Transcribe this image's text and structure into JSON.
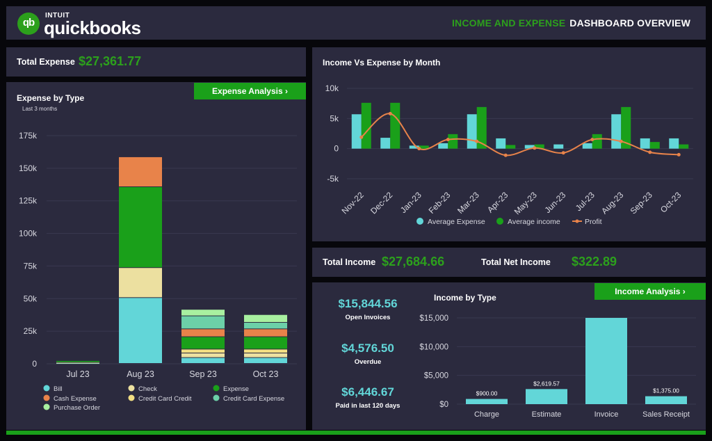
{
  "header": {
    "logo_intuit": "INTUIT",
    "logo_word": "quickbooks",
    "logo_badge": "qb",
    "title_part1": "INCOME AND EXPENSE",
    "title_part2": "DASHBOARD OVERVIEW"
  },
  "total_expense": {
    "label": "Total Expense",
    "value": "$27,361.77"
  },
  "total_income": {
    "label": "Total Income",
    "value": "$27,684.66"
  },
  "total_net_income": {
    "label": "Total Net Income",
    "value": "$322.89"
  },
  "expense_panel": {
    "title": "Expense by Type",
    "subtitle": "Last 3 months",
    "button_label": "Expense Analysis ›"
  },
  "income_panel": {
    "button_label": "Income Analysis ›",
    "stats": [
      {
        "value": "$15,844.56",
        "label": "Open Invoices"
      },
      {
        "value": "$4,576.50",
        "label": "Overdue"
      },
      {
        "value": "$6,446.67",
        "label": "Paid in last 120 days"
      }
    ]
  },
  "colors": {
    "panel": "#2b2a3e",
    "green": "#2ca01c",
    "cyan": "#62d6d8",
    "orange": "#e8834a"
  },
  "chart_data": [
    {
      "id": "expense_by_type",
      "type": "bar",
      "stacked": true,
      "title": "Expense by Type",
      "subtitle": "Last 3 months",
      "categories": [
        "Jul 23",
        "Aug 23",
        "Sep 23",
        "Oct 23"
      ],
      "ylim": [
        0,
        175000
      ],
      "yticks": [
        0,
        25000,
        50000,
        75000,
        100000,
        125000,
        150000,
        175000
      ],
      "ytick_labels": [
        "0",
        "25k",
        "50k",
        "75k",
        "100k",
        "125k",
        "150k",
        "175k"
      ],
      "series": [
        {
          "name": "Bill",
          "color": "#62d6d8",
          "values": [
            500,
            50500,
            4500,
            4500
          ]
        },
        {
          "name": "Check",
          "color": "#ece0a0",
          "values": [
            300,
            23000,
            3500,
            3500
          ]
        },
        {
          "name": "Credit Card Credit",
          "color": "#f2de82",
          "values": [
            0,
            0,
            3000,
            3000
          ]
        },
        {
          "name": "Expense",
          "color": "#1aa01a",
          "values": [
            1400,
            62000,
            9500,
            9500
          ]
        },
        {
          "name": "Cash Expense",
          "color": "#e8834a",
          "values": [
            0,
            23000,
            6000,
            6000
          ]
        },
        {
          "name": "Credit Card Expense",
          "color": "#6cd0a8",
          "values": [
            0,
            0,
            10000,
            5000
          ]
        },
        {
          "name": "Purchase Order",
          "color": "#a8f0a0",
          "values": [
            0,
            0,
            5000,
            6000
          ]
        }
      ],
      "legend": [
        {
          "name": "Bill",
          "color": "#62d6d8"
        },
        {
          "name": "Check",
          "color": "#ece0a0"
        },
        {
          "name": "Expense",
          "color": "#1aa01a"
        },
        {
          "name": "Cash Expense",
          "color": "#e8834a"
        },
        {
          "name": "Credit Card Credit",
          "color": "#f2de82"
        },
        {
          "name": "Credit Card Expense",
          "color": "#6cd0a8"
        },
        {
          "name": "Purchase Order",
          "color": "#a8f0a0"
        }
      ]
    },
    {
      "id": "income_vs_expense",
      "type": "bar",
      "title": "Income Vs Expense by Month",
      "categories": [
        "Nov-22",
        "Dec-22",
        "Jan-23",
        "Feb-23",
        "Mar-23",
        "Apr-23",
        "May-23",
        "Jun-23",
        "Jul-23",
        "Aug-23",
        "Sep-23",
        "Oct-23"
      ],
      "ylim": [
        -5000,
        10000
      ],
      "yticks": [
        -5000,
        0,
        5000,
        10000
      ],
      "ytick_labels": [
        "-5k",
        "0",
        "5k",
        "10k"
      ],
      "series": [
        {
          "name": "Average Expense",
          "type": "bar",
          "color": "#62d6d8",
          "values": [
            5700,
            1800,
            500,
            900,
            5700,
            1700,
            600,
            700,
            900,
            5700,
            1700,
            1700
          ]
        },
        {
          "name": "Average income",
          "type": "bar",
          "color": "#1aa01a",
          "values": [
            7600,
            7600,
            500,
            2400,
            6900,
            600,
            700,
            0,
            2400,
            6900,
            1100,
            700
          ]
        },
        {
          "name": "Profit",
          "type": "line",
          "color": "#e8834a",
          "values": [
            1900,
            5800,
            0,
            1500,
            1200,
            -1100,
            100,
            -700,
            1500,
            1200,
            -600,
            -1000
          ]
        }
      ]
    },
    {
      "id": "income_by_type",
      "type": "bar",
      "title": "Income by Type",
      "categories": [
        "Charge",
        "Estimate",
        "Invoice",
        "Sales Receipt"
      ],
      "values": [
        900,
        2619.57,
        15000,
        1375
      ],
      "data_labels": [
        "$900.00",
        "$2,619.57",
        "",
        "$1,375.00"
      ],
      "ylim": [
        0,
        15000
      ],
      "yticks": [
        0,
        5000,
        10000,
        15000
      ],
      "ytick_labels": [
        "$0",
        "$5,000",
        "$10,000",
        "$15,000"
      ],
      "color": "#62d6d8"
    }
  ]
}
